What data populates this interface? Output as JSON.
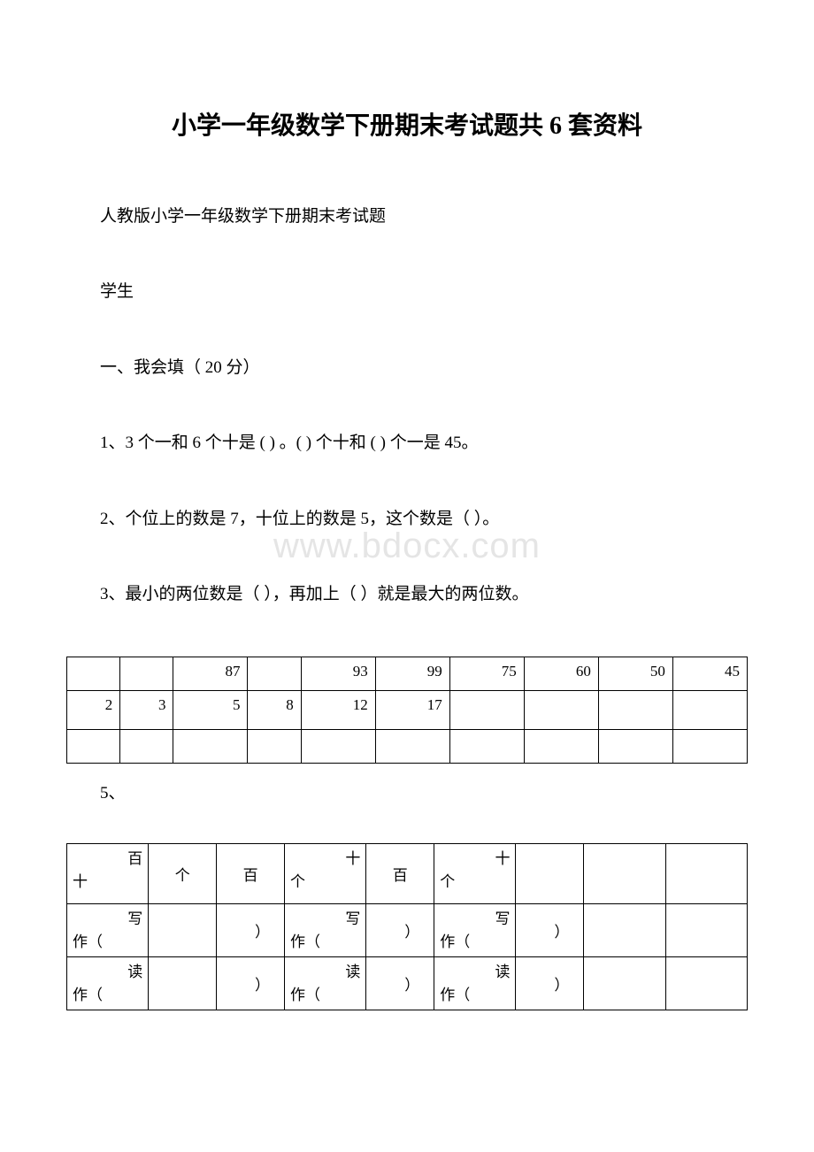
{
  "title": "小学一年级数学下册期末考试题共 6 套资料",
  "subtitle": "人教版小学一年级数学下册期末考试题",
  "student_label": "学生",
  "section1_header": "一、我会填（ 20 分）",
  "q1": "1、3 个一和 6 个十是 ( ) 。( ) 个十和 ( ) 个一是 45。",
  "q2": "2、个位上的数是 7，十位上的数是 5，这个数是（ ）。",
  "q3": "3、最小的两位数是（ ），再加上（ ）就是最大的两位数。",
  "q5": "5、",
  "watermark": "www.bdocx.com",
  "table1": {
    "row1": [
      "",
      "",
      "87",
      "",
      "93",
      "99",
      "75",
      "60",
      "50",
      "45"
    ],
    "row2": [
      "2",
      "3",
      "5",
      "8",
      "12",
      "17",
      "",
      "",
      "",
      ""
    ],
    "row3": [
      "",
      "",
      "",
      "",
      "",
      "",
      "",
      "",
      "",
      ""
    ]
  },
  "table2": {
    "r1": {
      "c1_top": "百",
      "c1_bot": "十",
      "c2": "个",
      "c3": "百",
      "c4_top": "十",
      "c4_bot": "个",
      "c5": "百",
      "c6_top": "十",
      "c6_bot": "个"
    },
    "r2": {
      "c1_top": "写",
      "c1_bot": "作（",
      "c3": "）",
      "c4_top": "写",
      "c4_bot": "作（",
      "c5": "）",
      "c6_top": "写",
      "c6_bot": "作（",
      "c7": "）"
    },
    "r3": {
      "c1_top": "读",
      "c1_bot": "作（",
      "c3": "）",
      "c4_top": "读",
      "c4_bot": "作（",
      "c5": "）",
      "c6_top": "读",
      "c6_bot": "作（",
      "c7": "）"
    }
  },
  "colors": {
    "text": "#000000",
    "background": "#ffffff",
    "border": "#000000",
    "watermark": "#e5e5e5"
  }
}
